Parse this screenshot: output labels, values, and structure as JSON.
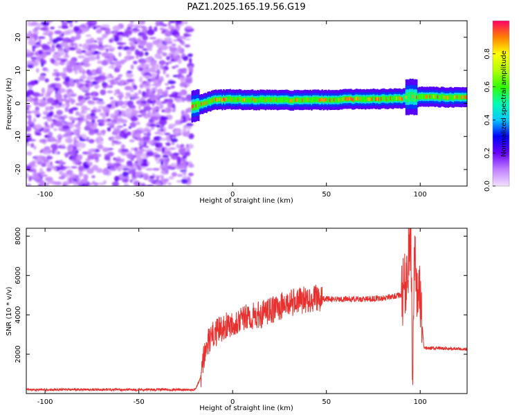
{
  "title": "PAZ1.2025.165.19.56.G19",
  "chart_data": [
    {
      "type": "heatmap",
      "xlabel": "Height of straight line (km)",
      "ylabel": "Frequency (Hz)",
      "xlim": [
        -110,
        125
      ],
      "ylim": [
        -25,
        25
      ],
      "xticks": [
        -100,
        -50,
        0,
        50,
        100
      ],
      "yticks": [
        -20,
        -10,
        0,
        10,
        20
      ],
      "colorbar": {
        "label": "Normalized spectral amplitude",
        "range": [
          0,
          1
        ],
        "ticks": [
          0,
          0.2,
          0.4,
          0.6,
          0.8
        ],
        "tick_labels": [
          "0.0",
          "0.2",
          "0.4",
          "0.6",
          "0.8"
        ],
        "colormap": "rainbow (magenta → blue → cyan → green → yellow → red)"
      },
      "noise_region": {
        "x": [
          -110,
          -22
        ],
        "frequency": [
          -25,
          25
        ],
        "amplitude": [
          0.0,
          0.25
        ]
      },
      "signal_band": [
        {
          "x": -22,
          "frequency": -1.0
        },
        {
          "x": -10,
          "frequency": 1.0
        },
        {
          "x": 0,
          "frequency": 1.2
        },
        {
          "x": 20,
          "frequency": 1.0
        },
        {
          "x": 40,
          "frequency": 1.0
        },
        {
          "x": 60,
          "frequency": 1.2
        },
        {
          "x": 90,
          "frequency": 1.5
        },
        {
          "x": 95,
          "frequency": 2.0
        },
        {
          "x": 125,
          "frequency": 1.8
        }
      ]
    },
    {
      "type": "line",
      "xlabel": "Height of straight line (km)",
      "ylabel": "SNR (10 * v/v)",
      "xlim": [
        -110,
        125
      ],
      "ylim": [
        0,
        8400
      ],
      "xticks": [
        -100,
        -50,
        0,
        50,
        100
      ],
      "yticks": [
        2000,
        4000,
        6000,
        8000
      ],
      "color": "#e8302e",
      "series": [
        {
          "x": [
            -110,
            -60,
            -20,
            -17,
            -15,
            -13,
            -11,
            -10,
            -5,
            0,
            5,
            10,
            15,
            20,
            25,
            30,
            35,
            40,
            45,
            50,
            60,
            70,
            80,
            90,
            93,
            95,
            96,
            97,
            98,
            100,
            102,
            110,
            125
          ],
          "y": [
            200,
            200,
            200,
            800,
            2000,
            2600,
            2900,
            3000,
            3400,
            3600,
            3800,
            3900,
            4000,
            4200,
            4400,
            4600,
            4700,
            4800,
            4850,
            4800,
            4800,
            4800,
            4850,
            5000,
            6000,
            8200,
            1000,
            7500,
            5000,
            4800,
            2300,
            2300,
            2250
          ]
        }
      ]
    }
  ]
}
